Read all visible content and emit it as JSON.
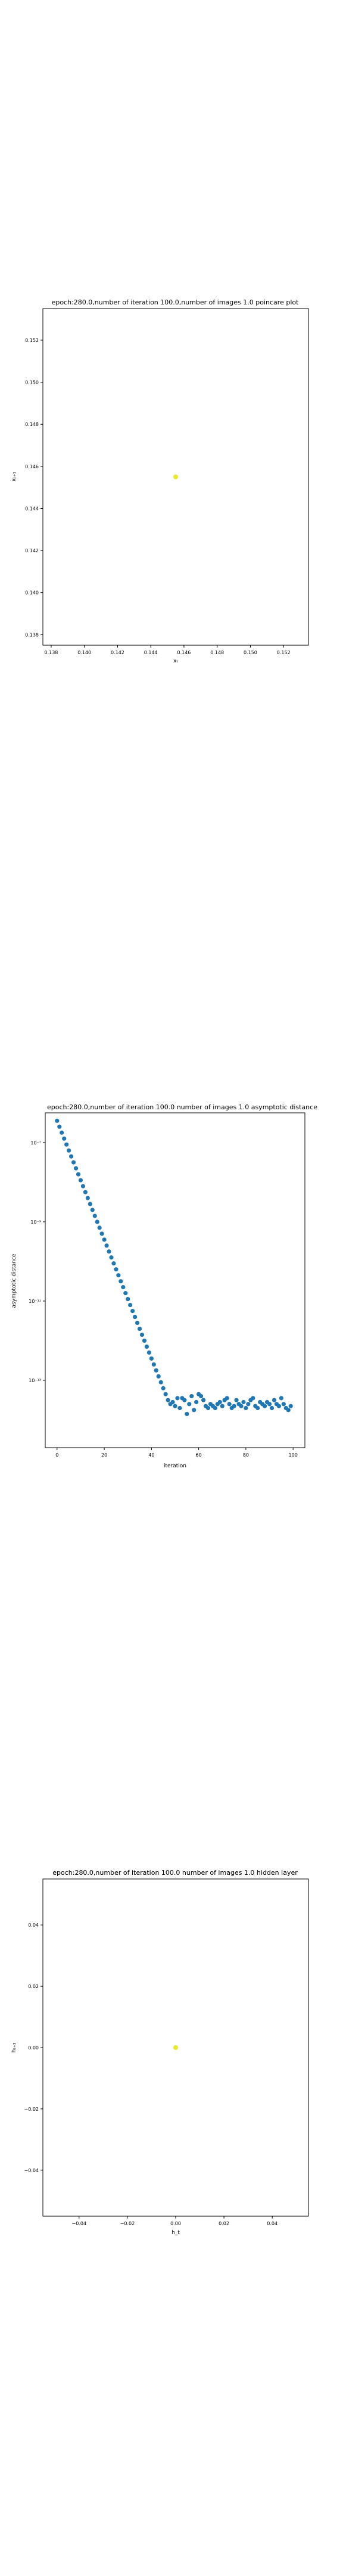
{
  "chart_data": [
    {
      "type": "scatter",
      "title": "epoch:280.0,number of iteration 100.0,number of images 1.0 poincare plot",
      "xlabel": "xₜ",
      "ylabel": "xₜ₊₁",
      "xlim": [
        0.1375,
        0.1535
      ],
      "ylim": [
        0.1375,
        0.1535
      ],
      "x_ticks": [
        "0.138",
        "0.140",
        "0.142",
        "0.144",
        "0.146",
        "0.148",
        "0.150",
        "0.152"
      ],
      "y_ticks": [
        "0.138",
        "0.140",
        "0.142",
        "0.144",
        "0.146",
        "0.148",
        "0.150",
        "0.152"
      ],
      "grid": false,
      "point_color": "#e8e82a",
      "points": [
        [
          0.1455,
          0.1455
        ]
      ]
    },
    {
      "type": "scatter",
      "title": "epoch:280.0,number of iteration 100.0  number of images 1.0 asymptotic distance",
      "xlabel": "iteration",
      "ylabel": "asymptotic distance",
      "xlim": [
        -5,
        105
      ],
      "y_scale": "log",
      "ylim_exp": [
        -14.7,
        -6.25
      ],
      "x_ticks": [
        "0",
        "20",
        "40",
        "60",
        "80",
        "100"
      ],
      "y_ticks": [
        "10⁻⁷",
        "10⁻⁹",
        "10⁻¹¹",
        "10⁻¹³"
      ],
      "grid": false,
      "point_color": "#1f77b4",
      "series": [
        {
          "x": [
            0,
            1,
            2,
            3,
            4,
            5,
            6,
            7,
            8,
            9,
            10,
            11,
            12,
            13,
            14,
            15,
            16,
            17,
            18,
            19,
            20,
            21,
            22,
            23,
            24,
            25,
            26,
            27,
            28,
            29,
            30,
            31,
            32,
            33,
            34,
            35,
            36,
            37,
            38,
            39,
            40,
            41,
            42,
            43,
            44,
            45,
            46,
            47,
            48,
            49,
            50,
            51,
            52,
            53,
            54,
            55,
            56,
            57,
            58,
            59,
            60,
            61,
            62,
            63,
            64,
            65,
            66,
            67,
            68,
            69,
            70,
            71,
            72,
            73,
            74,
            75,
            76,
            77,
            78,
            79,
            80,
            81,
            82,
            83,
            84,
            85,
            86,
            87,
            88,
            89,
            90,
            91,
            92,
            93,
            94,
            95,
            96,
            97,
            98,
            99
          ],
          "log10_y": [
            -6.45,
            -6.6,
            -6.75,
            -6.9,
            -7.05,
            -7.2,
            -7.35,
            -7.5,
            -7.65,
            -7.8,
            -7.95,
            -8.1,
            -8.25,
            -8.4,
            -8.55,
            -8.7,
            -8.85,
            -9.0,
            -9.15,
            -9.3,
            -9.45,
            -9.6,
            -9.75,
            -9.9,
            -10.05,
            -10.2,
            -10.35,
            -10.5,
            -10.65,
            -10.8,
            -10.95,
            -11.1,
            -11.25,
            -11.4,
            -11.55,
            -11.7,
            -11.85,
            -12.0,
            -12.15,
            -12.3,
            -12.45,
            -12.6,
            -12.75,
            -12.9,
            -13.05,
            -13.2,
            -13.35,
            -13.5,
            -13.6,
            -13.55,
            -13.65,
            -13.45,
            -13.7,
            -13.45,
            -13.5,
            -13.85,
            -13.6,
            -13.4,
            -13.75,
            -13.55,
            -13.35,
            -13.4,
            -13.5,
            -13.65,
            -13.7,
            -13.6,
            -13.65,
            -13.7,
            -13.6,
            -13.55,
            -13.65,
            -13.5,
            -13.45,
            -13.6,
            -13.7,
            -13.65,
            -13.5,
            -13.6,
            -13.65,
            -13.55,
            -13.7,
            -13.6,
            -13.5,
            -13.45,
            -13.65,
            -13.7,
            -13.55,
            -13.6,
            -13.65,
            -13.55,
            -13.6,
            -13.7,
            -13.5,
            -13.6,
            -13.65,
            -13.45,
            -13.6,
            -13.7,
            -13.75,
            -13.65
          ]
        }
      ]
    },
    {
      "type": "scatter",
      "title": "epoch:280.0,number of iteration 100.0  number of images 1.0 hidden layer",
      "xlabel": "h_t",
      "ylabel": "hₜ₊₁",
      "xlim": [
        -0.055,
        0.055
      ],
      "ylim": [
        -0.055,
        0.055
      ],
      "x_ticks": [
        "−0.04",
        "−0.02",
        "0.00",
        "0.02",
        "0.04"
      ],
      "y_ticks": [
        "−0.04",
        "−0.02",
        "0.00",
        "0.02",
        "0.04"
      ],
      "grid": false,
      "point_color": "#e8e82a",
      "points": [
        [
          0.0,
          0.0
        ]
      ]
    }
  ]
}
